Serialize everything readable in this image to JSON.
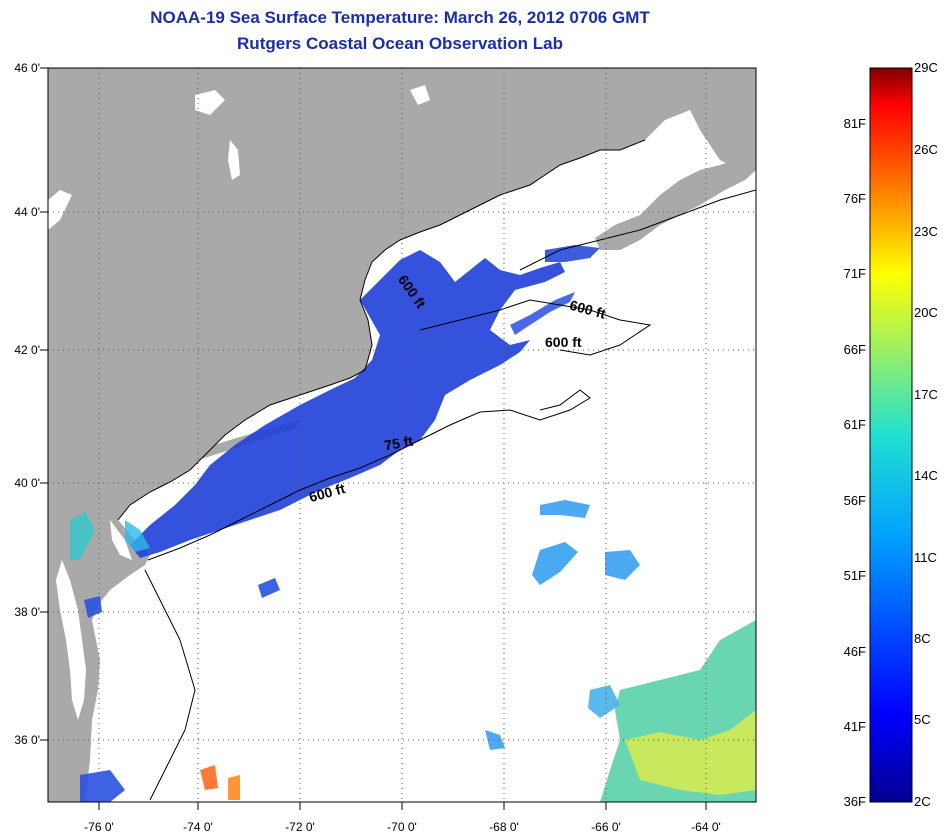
{
  "title": "NOAA-19 Sea Surface Temperature:  March 26, 2012 0706 GMT",
  "subtitle": "Rutgers Coastal Ocean Observation Lab",
  "map": {
    "lon_range": [
      -77,
      -63
    ],
    "lat_range": [
      35,
      46
    ],
    "x_ticks": [
      "-76 0'",
      "-74 0'",
      "-72 0'",
      "-70 0'",
      "-68 0'",
      "-66 0'",
      "-64 0'"
    ],
    "y_ticks": [
      "46 0'",
      "44 0'",
      "42 0'",
      "40 0'",
      "38 0'",
      "36 0'"
    ],
    "land_color": "#a9a9a9",
    "ocean_color": "#ffffff",
    "contour_labels": [
      "600 ft",
      "600 ft",
      "600 ft",
      "75 ft",
      "600 ft"
    ]
  },
  "colorbar": {
    "fahrenheit_labels": [
      "81F",
      "76F",
      "71F",
      "66F",
      "61F",
      "56F",
      "51F",
      "46F",
      "41F",
      "36F"
    ],
    "celsius_labels": [
      "29C",
      "26C",
      "23C",
      "20C",
      "17C",
      "14C",
      "11C",
      "8C",
      "5C",
      "2C"
    ],
    "min_c": 2,
    "max_c": 29,
    "colors": [
      "#7f0000",
      "#ff0000",
      "#ff8000",
      "#ffff00",
      "#80ff80",
      "#00ffff",
      "#0080ff",
      "#0000ff",
      "#00008f"
    ]
  }
}
